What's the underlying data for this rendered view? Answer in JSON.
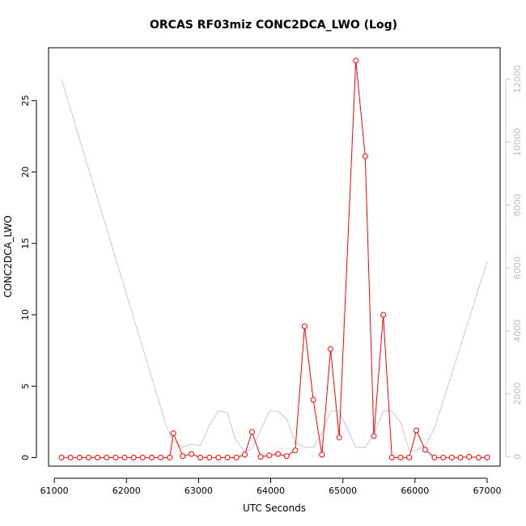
{
  "chart_data": {
    "type": "scatter",
    "title": "ORCAS RF03miz CONC2DCA_LWO (Log)",
    "xlabel": "UTC Seconds",
    "ylabel": "CONC2DCA_LWO",
    "xlim": [
      60920,
      67180
    ],
    "ylim": [
      -0.6,
      28.7
    ],
    "y2lim": [
      -300,
      13000
    ],
    "xticks": [
      61000,
      62000,
      63000,
      64000,
      65000,
      66000,
      67000
    ],
    "yticks": [
      0,
      5,
      10,
      15,
      20,
      25
    ],
    "y2ticks": [
      0,
      2000,
      4000,
      6000,
      8000,
      10000,
      12000
    ],
    "colors": {
      "primary": "#ff0000",
      "secondary": "#c8c8c8"
    },
    "series": [
      {
        "axis": "left",
        "style": "line+points",
        "x": [
          61100,
          61225,
          61350,
          61475,
          61600,
          61725,
          61850,
          61975,
          62100,
          62225,
          62350,
          62475,
          62600,
          62650,
          62780,
          62900,
          63025,
          63150,
          63275,
          63400,
          63525,
          63640,
          63740,
          63860,
          63980,
          64100,
          64220,
          64340,
          64470,
          64590,
          64710,
          64830,
          64950,
          65180,
          65310,
          65430,
          65560,
          65680,
          65800,
          65920,
          66020,
          66140,
          66270,
          66390,
          66510,
          66630,
          66750,
          66880,
          67000
        ],
        "y": [
          0.0,
          0.0,
          0.0,
          0.0,
          0.0,
          0.0,
          0.0,
          0.0,
          0.0,
          0.0,
          0.0,
          0.0,
          0.0,
          1.7,
          0.1,
          0.25,
          0.0,
          0.0,
          0.0,
          0.0,
          0.0,
          0.2,
          1.8,
          0.05,
          0.15,
          0.25,
          0.1,
          0.5,
          9.2,
          4.05,
          0.2,
          7.6,
          1.4,
          27.8,
          21.1,
          1.5,
          10.0,
          0.0,
          0.0,
          0.0,
          1.9,
          0.55,
          0.0,
          0.0,
          0.0,
          0.0,
          0.05,
          0.0,
          0.0
        ]
      },
      {
        "axis": "right",
        "style": "line",
        "x": [
          61100,
          62550,
          62650,
          62780,
          62900,
          63025,
          63150,
          63275,
          63400,
          63500,
          63640,
          63740,
          63860,
          63980,
          64100,
          64220,
          64340,
          64470,
          64590,
          64710,
          64830,
          64950,
          65180,
          65310,
          65430,
          65560,
          65680,
          65800,
          65920,
          66020,
          66140,
          66270,
          67000
        ],
        "y": [
          12000,
          1000,
          500,
          300,
          400,
          350,
          1000,
          1450,
          1400,
          600,
          150,
          250,
          850,
          1450,
          1450,
          1200,
          450,
          300,
          300,
          750,
          1450,
          1450,
          300,
          300,
          700,
          1450,
          1450,
          1100,
          200,
          200,
          350,
          900,
          6200
        ]
      }
    ]
  }
}
